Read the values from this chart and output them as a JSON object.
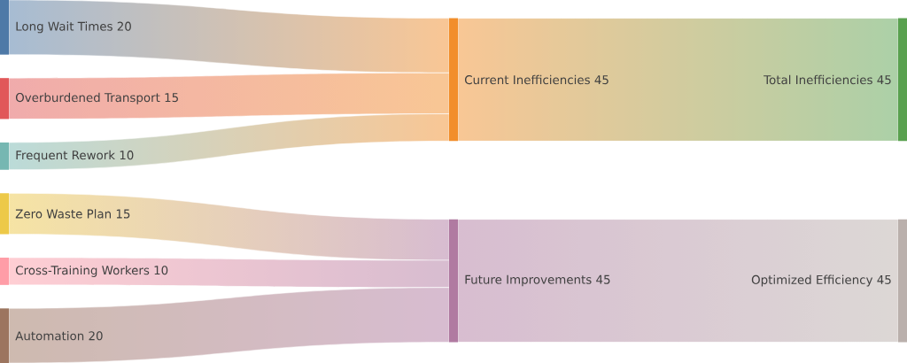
{
  "chart_data": {
    "type": "other",
    "categories": [
      "Long Wait Times",
      "Overburdened Transport",
      "Frequent Rework",
      "Zero Waste Plan",
      "Cross-Training Workers",
      "Automation",
      "Current Inefficiencies",
      "Future Improvements",
      "Total Inefficiencies",
      "Optimized Efficiency"
    ],
    "series": [
      {
        "values": [
          20,
          15,
          10,
          15,
          10,
          20,
          null,
          null,
          null,
          null
        ]
      },
      {
        "values": [
          null,
          null,
          null,
          null,
          null,
          null,
          45,
          45,
          null,
          null
        ]
      },
      {
        "values": [
          null,
          null,
          null,
          null,
          null,
          null,
          null,
          null,
          45,
          45
        ]
      }
    ],
    "colors": [
      "#4e79a7",
      "#e15759",
      "#76b7b2",
      "#edc948",
      "#ff9da7",
      "#9c755f",
      "#f28e2b",
      "#b07aa1",
      "#59a14f",
      "#bab0ac"
    ],
    "data_labels": true
  }
}
